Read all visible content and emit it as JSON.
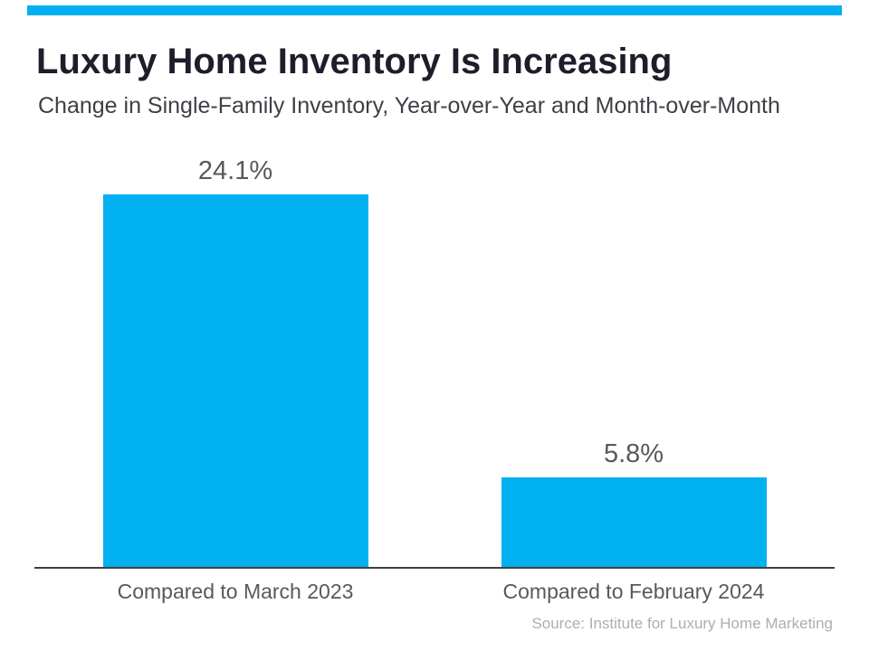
{
  "accent_color": "#00b0f0",
  "chart_data": {
    "type": "bar",
    "title": "Luxury Home Inventory Is Increasing",
    "subtitle": "Change in Single-Family Inventory, Year-over-Year and Month-over-Month",
    "categories": [
      "Compared to March 2023",
      "Compared to February 2024"
    ],
    "values": [
      24.1,
      5.8
    ],
    "value_labels": [
      "24.1%",
      "5.8%"
    ],
    "xlabel": "",
    "ylabel": "",
    "ylim": [
      0,
      25
    ],
    "bar_color": "#00b0f0",
    "grid": false,
    "legend": false
  },
  "footer": {
    "source": "Source: Institute for Luxury Home Marketing"
  }
}
